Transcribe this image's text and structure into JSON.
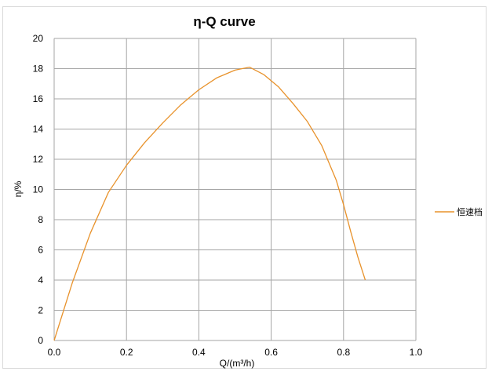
{
  "chart_data": {
    "type": "line",
    "title": "η-Q  curve",
    "xlabel": "Q/(m³/h)",
    "ylabel": "η/%",
    "xlim": [
      0.0,
      1.0
    ],
    "ylim": [
      0,
      20
    ],
    "x_ticks": [
      "0.0",
      "0.2",
      "0.4",
      "0.6",
      "0.8",
      "1.0"
    ],
    "y_ticks": [
      "0",
      "2",
      "4",
      "6",
      "8",
      "10",
      "12",
      "14",
      "16",
      "18",
      "20"
    ],
    "grid": true,
    "legend_position": "right",
    "series": [
      {
        "name": "恒速档",
        "color": "#E8922B",
        "x": [
          0.0,
          0.05,
          0.1,
          0.15,
          0.2,
          0.25,
          0.3,
          0.35,
          0.4,
          0.45,
          0.5,
          0.54,
          0.58,
          0.62,
          0.66,
          0.7,
          0.74,
          0.78,
          0.8,
          0.82,
          0.84,
          0.86
        ],
        "y": [
          0.0,
          3.8,
          7.1,
          9.8,
          11.6,
          13.1,
          14.4,
          15.6,
          16.6,
          17.4,
          17.9,
          18.1,
          17.6,
          16.8,
          15.7,
          14.5,
          12.9,
          10.6,
          9.0,
          7.2,
          5.5,
          4.0
        ]
      }
    ]
  }
}
